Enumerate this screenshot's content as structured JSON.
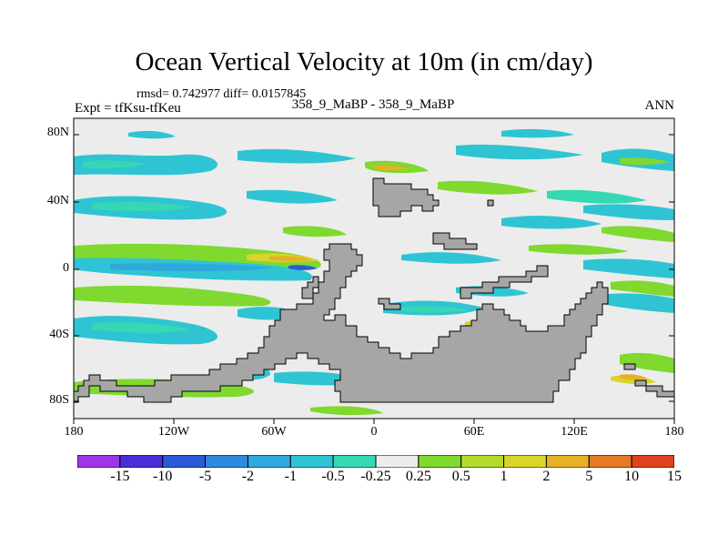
{
  "title": "Ocean Vertical Velocity at 10m (in cm/day)",
  "stats": "rmsd= 0.742977 diff= 0.0157845",
  "experiment": "Expt = tfKsu-tfKeu",
  "case_label": "358_9_MaBP - 358_9_MaBP",
  "season": "ANN",
  "y_ticks": [
    "80N",
    "40N",
    "0",
    "40S",
    "80S"
  ],
  "x_ticks": [
    "180",
    "120W",
    "60W",
    "0",
    "60E",
    "120E",
    "180"
  ],
  "colorbar": {
    "levels": [
      "-15",
      "-10",
      "-5",
      "-2",
      "-1",
      "-0.5",
      "-0.25",
      "0.25",
      "0.5",
      "1",
      "2",
      "5",
      "10",
      "15"
    ],
    "colors": [
      "#9f35e8",
      "#4a2fd8",
      "#2a5ad8",
      "#2d8ae0",
      "#2fa8de",
      "#2fc4d3",
      "#36d8b2",
      "#ececec",
      "#7fd92e",
      "#b4db2c",
      "#d9d42a",
      "#e4b127",
      "#e57b25",
      "#e0421d"
    ]
  },
  "colors": {
    "land": "#a6a6a6",
    "background": "#ececec",
    "teal": "#2fc4d3",
    "aqua": "#36d8b2",
    "cyan_blue": "#2fa8de",
    "green": "#7fd92e",
    "yellow_green": "#b4db2c",
    "yellow": "#d9d42a",
    "orange": "#e4b127",
    "blue": "#2a5ad8"
  }
}
